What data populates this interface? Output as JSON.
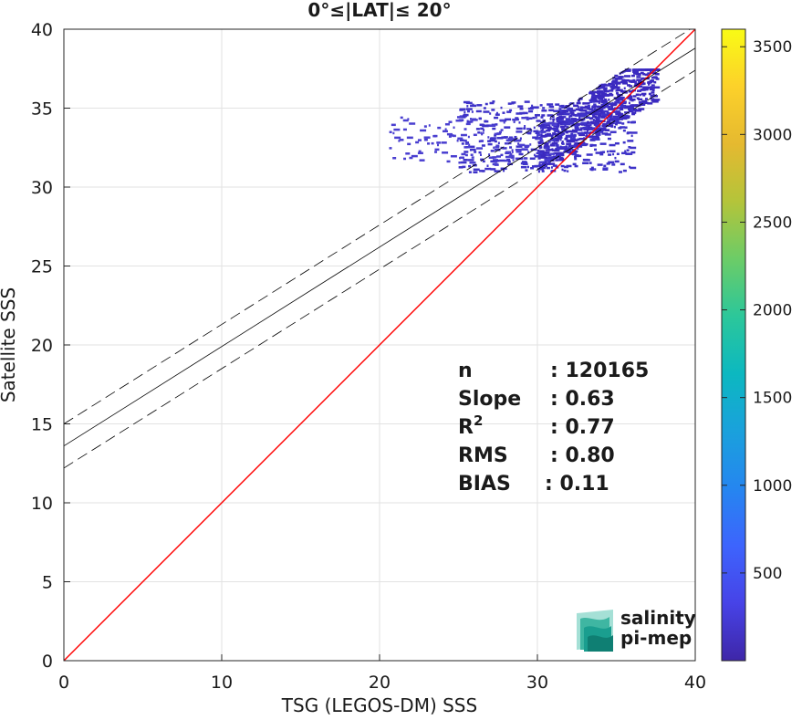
{
  "chart_data": {
    "type": "heatmap",
    "title": "0°≤|LAT|≤ 20°",
    "xlabel": "TSG (LEGOS-DM) SSS",
    "ylabel": "Satellite SSS",
    "xlim": [
      0,
      40
    ],
    "ylim": [
      0,
      40
    ],
    "xticks": [
      "0",
      "10",
      "20",
      "30",
      "40"
    ],
    "yticks": [
      "0",
      "5",
      "10",
      "15",
      "20",
      "25",
      "30",
      "35",
      "40"
    ],
    "grid": true,
    "reference_lines": [
      {
        "name": "identity",
        "color": "#ff0000",
        "x": [
          0,
          40
        ],
        "y": [
          0,
          40
        ]
      },
      {
        "name": "fit",
        "color": "#000000",
        "x": [
          0,
          40
        ],
        "y": [
          13.6,
          38.8
        ]
      },
      {
        "name": "fit+",
        "color": "#000000",
        "dashed": true,
        "x": [
          0,
          40
        ],
        "y": [
          15.0,
          40.2
        ]
      },
      {
        "name": "fit-",
        "color": "#000000",
        "dashed": true,
        "x": [
          0,
          40
        ],
        "y": [
          12.2,
          37.4
        ]
      }
    ],
    "density_clusters": [
      {
        "x": [
          30,
          37.5
        ],
        "y": [
          31,
          37.5
        ],
        "density": "high",
        "color": "#3b2ac0"
      },
      {
        "x": [
          25,
          36
        ],
        "y": [
          31,
          35.5
        ],
        "density": "medium",
        "color": "#3e33c8"
      },
      {
        "x": [
          20.5,
          31
        ],
        "y": [
          31.5,
          34.5
        ],
        "density": "low",
        "color": "#4a3fd0"
      }
    ],
    "colorbar": {
      "min": 0,
      "max": 3600,
      "ticks": [
        "500",
        "1000",
        "1500",
        "2000",
        "2500",
        "3000",
        "3500"
      ],
      "colormap": [
        "#3e26a8",
        "#4743e7",
        "#3d64fd",
        "#2586f0",
        "#1aa1dc",
        "#0cb8c0",
        "#2cc79a",
        "#6ccc67",
        "#b4c43a",
        "#e5b930",
        "#fcd12a",
        "#f9fb15"
      ]
    },
    "stats": [
      {
        "label": "n",
        "value": ": 120165"
      },
      {
        "label": "Slope",
        "value": ": 0.63"
      },
      {
        "label": "R",
        "sup": "2",
        "value": ": 0.77"
      },
      {
        "label": "RMS",
        "value": ": 0.80"
      },
      {
        "label": "BIAS",
        "value": ": 0.11"
      }
    ]
  },
  "logo": {
    "line1": "salinity",
    "line2": "pi-mep",
    "color": "#1a9e8f"
  }
}
